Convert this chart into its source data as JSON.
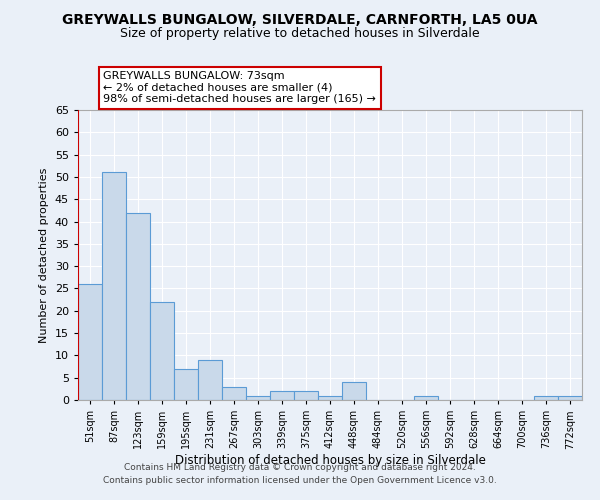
{
  "title": "GREYWALLS BUNGALOW, SILVERDALE, CARNFORTH, LA5 0UA",
  "subtitle": "Size of property relative to detached houses in Silverdale",
  "xlabel": "Distribution of detached houses by size in Silverdale",
  "ylabel": "Number of detached properties",
  "categories": [
    "51sqm",
    "87sqm",
    "123sqm",
    "159sqm",
    "195sqm",
    "231sqm",
    "267sqm",
    "303sqm",
    "339sqm",
    "375sqm",
    "412sqm",
    "448sqm",
    "484sqm",
    "520sqm",
    "556sqm",
    "592sqm",
    "628sqm",
    "664sqm",
    "700sqm",
    "736sqm",
    "772sqm"
  ],
  "values": [
    26,
    51,
    42,
    22,
    7,
    9,
    3,
    1,
    2,
    2,
    1,
    4,
    0,
    0,
    1,
    0,
    0,
    0,
    0,
    1,
    1
  ],
  "bar_color": "#c9d9ea",
  "bar_edge_color": "#5b9bd5",
  "ylim": [
    0,
    65
  ],
  "yticks": [
    0,
    5,
    10,
    15,
    20,
    25,
    30,
    35,
    40,
    45,
    50,
    55,
    60,
    65
  ],
  "vline_color": "#cc0000",
  "annotation_text": "GREYWALLS BUNGALOW: 73sqm\n← 2% of detached houses are smaller (4)\n98% of semi-detached houses are larger (165) →",
  "annotation_box_color": "#ffffff",
  "annotation_box_edge": "#cc0000",
  "footer1": "Contains HM Land Registry data © Crown copyright and database right 2024.",
  "footer2": "Contains public sector information licensed under the Open Government Licence v3.0.",
  "bg_color": "#eaf0f8",
  "plot_bg": "#eaf0f8",
  "grid_color": "#ffffff",
  "title_fontsize": 10,
  "subtitle_fontsize": 9,
  "footer_fontsize": 6.5
}
